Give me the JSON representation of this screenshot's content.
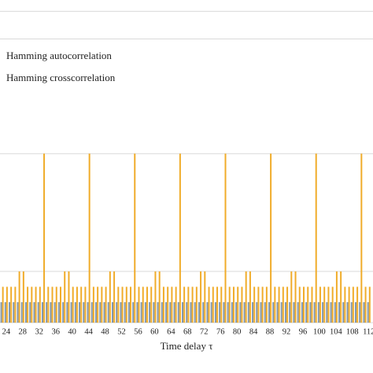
{
  "chart_data": {
    "type": "bar",
    "x_label": "Time delay τ",
    "x": [
      23,
      24,
      25,
      26,
      27,
      28,
      29,
      30,
      31,
      32,
      33,
      34,
      35,
      36,
      37,
      38,
      39,
      40,
      41,
      42,
      43,
      44,
      45,
      46,
      47,
      48,
      49,
      50,
      51,
      52,
      53,
      54,
      55,
      56,
      57,
      58,
      59,
      60,
      61,
      62,
      63,
      64,
      65,
      66,
      67,
      68,
      69,
      70,
      71,
      72,
      73,
      74,
      75,
      76,
      77,
      78,
      79,
      80,
      81,
      82,
      83,
      84,
      85,
      86,
      87,
      88,
      89,
      90,
      91,
      92,
      93,
      94,
      95,
      96,
      97,
      98,
      99,
      100,
      101,
      102,
      103,
      104,
      105,
      106,
      107,
      108,
      109,
      110,
      111,
      112
    ],
    "series": [
      {
        "name": "Hamming autocorrelation",
        "color": "#8497a8",
        "values": [
          2,
          2,
          2,
          2,
          2,
          2,
          2,
          2,
          2,
          2,
          2,
          2,
          2,
          2,
          2,
          2,
          2,
          2,
          2,
          2,
          2,
          2,
          2,
          2,
          2,
          2,
          2,
          2,
          2,
          2,
          2,
          2,
          2,
          2,
          2,
          2,
          2,
          2,
          2,
          2,
          2,
          2,
          2,
          2,
          2,
          2,
          2,
          2,
          2,
          2,
          2,
          2,
          2,
          2,
          2,
          2,
          2,
          2,
          2,
          2,
          2,
          2,
          2,
          2,
          2,
          2,
          2,
          2,
          2,
          2,
          2,
          2,
          2,
          2,
          2,
          2,
          2,
          2,
          2,
          2,
          2,
          2,
          2,
          2,
          2,
          2,
          2,
          2,
          2,
          2
        ]
      },
      {
        "name": "Hamming crosscorrelation",
        "color": "#f0ac2a",
        "values": [
          3.5,
          3.5,
          3.5,
          3.5,
          5,
          5,
          3.5,
          3.5,
          3.5,
          3.5,
          16.5,
          3.5,
          3.5,
          3.5,
          3.5,
          5,
          5,
          3.5,
          3.5,
          3.5,
          3.5,
          16.5,
          3.5,
          3.5,
          3.5,
          3.5,
          5,
          5,
          3.5,
          3.5,
          3.5,
          3.5,
          16.5,
          3.5,
          3.5,
          3.5,
          3.5,
          5,
          5,
          3.5,
          3.5,
          3.5,
          3.5,
          16.5,
          3.5,
          3.5,
          3.5,
          3.5,
          5,
          5,
          3.5,
          3.5,
          3.5,
          3.5,
          16.5,
          3.5,
          3.5,
          3.5,
          3.5,
          5,
          5,
          3.5,
          3.5,
          3.5,
          3.5,
          16.5,
          3.5,
          3.5,
          3.5,
          3.5,
          5,
          5,
          3.5,
          3.5,
          3.5,
          3.5,
          16.5,
          3.5,
          3.5,
          3.5,
          3.5,
          5,
          5,
          3.5,
          3.5,
          3.5,
          3.5,
          16.5,
          3.5,
          3.5
        ]
      }
    ],
    "xlim": [
      22.5,
      113
    ],
    "xticks": [
      24,
      28,
      32,
      36,
      40,
      44,
      48,
      52,
      56,
      60,
      64,
      68,
      72,
      76,
      80,
      84,
      88,
      92,
      96,
      100,
      104,
      108,
      112
    ],
    "ylim": [
      0,
      31.5
    ],
    "yticks": [
      0,
      5,
      16.5,
      27.7,
      30.4
    ],
    "grid": true
  }
}
